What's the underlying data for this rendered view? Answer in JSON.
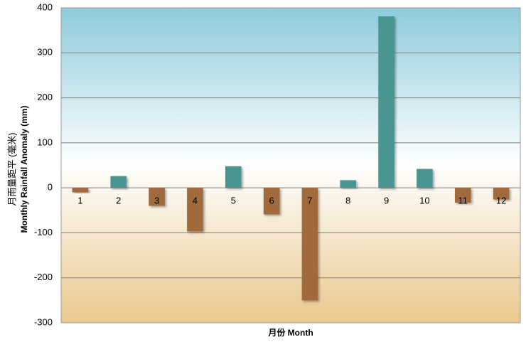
{
  "chart_data": {
    "type": "bar",
    "categories": [
      "1",
      "2",
      "3",
      "4",
      "5",
      "6",
      "7",
      "8",
      "9",
      "10",
      "11",
      "12"
    ],
    "values": [
      -10,
      26,
      -40,
      -97,
      48,
      -59,
      -250,
      17,
      381,
      42,
      -33,
      -26
    ],
    "title": "",
    "xlabel": "月份  Month",
    "ylabel_zh": "月雨量距平 (毫米)",
    "ylabel": "Monthly Rainfall Anomaly (mm)",
    "ylim": [
      -300,
      400
    ],
    "yticks": [
      400,
      300,
      200,
      100,
      0,
      -100,
      -200,
      -300
    ],
    "grid": true,
    "legend": "none",
    "colors": {
      "positive": "#4a9590",
      "negative": "#a06a3e",
      "bg_top": "#8ecbdc",
      "bg_mid": "#ffffff",
      "bg_bottom": "#e9c88e",
      "grid": "#808080"
    }
  }
}
